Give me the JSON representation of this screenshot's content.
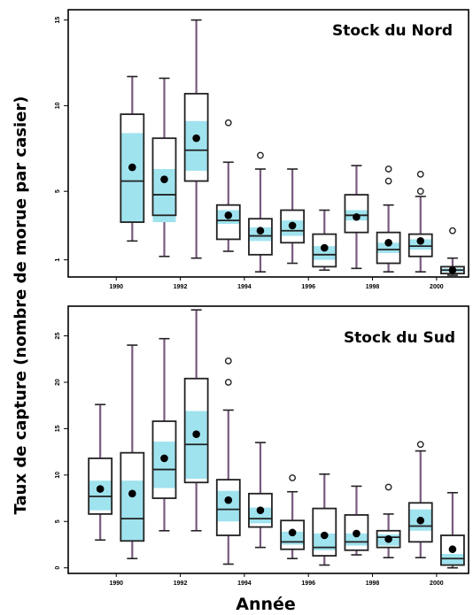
{
  "figure": {
    "ylabel": "Taux de capture (nombre de morue par casier)",
    "xlabel": "Année"
  },
  "chart_data": [
    {
      "type": "box",
      "title": "Stock du Nord",
      "ylim": [
        0,
        15.6
      ],
      "yticks": [
        1,
        5,
        10,
        15
      ],
      "ytick_labels": [
        "1",
        "5",
        "10",
        "15"
      ],
      "xlim": [
        1988.5,
        2001
      ],
      "xticks": [
        1990,
        1992,
        1994,
        1996,
        1998,
        2000
      ],
      "xtick_labels": [
        "1990",
        "1992",
        "1994",
        "1996",
        "1998",
        "2000"
      ],
      "colors": {
        "whisker": "#7a5a80",
        "box": "#222222",
        "ci": "#9fe3ee",
        "mean": "#000000"
      },
      "boxes": [
        {
          "x": 1990.5,
          "whislo": 2.1,
          "q1": 3.2,
          "med": 5.6,
          "q3": 9.5,
          "whishi": 11.7,
          "mean": 6.4,
          "ci": [
            3.2,
            8.4
          ],
          "fliers": []
        },
        {
          "x": 1991.5,
          "whislo": 1.2,
          "q1": 3.6,
          "med": 4.8,
          "q3": 8.1,
          "whishi": 11.6,
          "mean": 5.7,
          "ci": [
            3.2,
            6.3
          ],
          "fliers": []
        },
        {
          "x": 1992.5,
          "whislo": 1.1,
          "q1": 5.6,
          "med": 7.4,
          "q3": 10.7,
          "whishi": 15.0,
          "mean": 8.1,
          "ci": [
            6.2,
            9.1
          ],
          "fliers": []
        },
        {
          "x": 1993.5,
          "whislo": 1.5,
          "q1": 2.2,
          "med": 3.3,
          "q3": 4.2,
          "whishi": 6.7,
          "mean": 3.6,
          "ci": [
            3.1,
            3.9
          ],
          "fliers": [
            9.0
          ]
        },
        {
          "x": 1994.5,
          "whislo": 0.3,
          "q1": 1.3,
          "med": 2.4,
          "q3": 3.4,
          "whishi": 6.3,
          "mean": 2.7,
          "ci": [
            2.1,
            2.9
          ],
          "fliers": [
            7.1
          ]
        },
        {
          "x": 1995.5,
          "whislo": 0.8,
          "q1": 2.0,
          "med": 2.7,
          "q3": 3.9,
          "whishi": 6.3,
          "mean": 3.0,
          "ci": [
            2.4,
            3.3
          ],
          "fliers": []
        },
        {
          "x": 1996.5,
          "whislo": 0.4,
          "q1": 0.6,
          "med": 1.3,
          "q3": 2.5,
          "whishi": 3.9,
          "mean": 1.7,
          "ci": [
            1.0,
            1.8
          ],
          "fliers": []
        },
        {
          "x": 1997.5,
          "whislo": 0.5,
          "q1": 2.6,
          "med": 3.6,
          "q3": 4.8,
          "whishi": 6.5,
          "mean": 3.5,
          "ci": [
            3.3,
            3.9
          ],
          "fliers": []
        },
        {
          "x": 1998.5,
          "whislo": 0.3,
          "q1": 0.8,
          "med": 1.6,
          "q3": 2.6,
          "whishi": 4.2,
          "mean": 2.0,
          "ci": [
            1.4,
            2.0
          ],
          "fliers": [
            5.6,
            6.3
          ]
        },
        {
          "x": 1999.5,
          "whislo": 0.3,
          "q1": 1.2,
          "med": 1.8,
          "q3": 2.5,
          "whishi": 4.7,
          "mean": 2.1,
          "ci": [
            1.6,
            2.2
          ],
          "fliers": [
            5.0,
            6.0
          ]
        },
        {
          "x": 2000.5,
          "whislo": 0.1,
          "q1": 0.2,
          "med": 0.4,
          "q3": 0.6,
          "whishi": 1.1,
          "mean": 0.4,
          "ci": [
            0.3,
            0.5
          ],
          "fliers": [
            2.7
          ]
        }
      ]
    },
    {
      "type": "box",
      "title": "Stock du Sud",
      "ylim": [
        -0.6,
        28.2
      ],
      "yticks": [
        0,
        5,
        10,
        15,
        20,
        25
      ],
      "ytick_labels": [
        "0",
        "5",
        "10",
        "15",
        "20",
        "25"
      ],
      "xlim": [
        1988.5,
        2001
      ],
      "xticks": [
        1990,
        1992,
        1994,
        1996,
        1998,
        2000
      ],
      "xtick_labels": [
        "1990",
        "1992",
        "1994",
        "1996",
        "1998",
        "2000"
      ],
      "colors": {
        "whisker": "#7a5a80",
        "box": "#222222",
        "ci": "#9fe3ee",
        "mean": "#000000"
      },
      "boxes": [
        {
          "x": 1989.5,
          "whislo": 3.0,
          "q1": 5.8,
          "med": 7.7,
          "q3": 11.8,
          "whishi": 17.6,
          "mean": 8.5,
          "ci": [
            6.2,
            9.4
          ],
          "fliers": []
        },
        {
          "x": 1990.5,
          "whislo": 1.0,
          "q1": 2.9,
          "med": 5.3,
          "q3": 12.4,
          "whishi": 24.0,
          "mean": 8.0,
          "ci": [
            2.9,
            9.4
          ],
          "fliers": []
        },
        {
          "x": 1991.5,
          "whislo": 4.0,
          "q1": 7.5,
          "med": 10.6,
          "q3": 15.8,
          "whishi": 24.7,
          "mean": 11.8,
          "ci": [
            8.6,
            13.6
          ],
          "fliers": []
        },
        {
          "x": 1992.5,
          "whislo": 4.0,
          "q1": 9.2,
          "med": 13.3,
          "q3": 20.4,
          "whishi": 27.8,
          "mean": 14.4,
          "ci": [
            9.6,
            16.9
          ],
          "fliers": []
        },
        {
          "x": 1993.5,
          "whislo": 0.4,
          "q1": 3.5,
          "med": 6.3,
          "q3": 9.5,
          "whishi": 17.0,
          "mean": 7.3,
          "ci": [
            5.0,
            8.3
          ],
          "fliers": [
            20.0,
            22.3
          ]
        },
        {
          "x": 1994.5,
          "whislo": 2.2,
          "q1": 4.4,
          "med": 5.3,
          "q3": 8.0,
          "whishi": 13.5,
          "mean": 6.2,
          "ci": [
            4.8,
            6.5
          ],
          "fliers": []
        },
        {
          "x": 1995.5,
          "whislo": 1.0,
          "q1": 2.0,
          "med": 2.8,
          "q3": 5.1,
          "whishi": 8.2,
          "mean": 3.8,
          "ci": [
            2.5,
            3.9
          ],
          "fliers": [
            9.7
          ]
        },
        {
          "x": 1996.5,
          "whislo": 0.3,
          "q1": 1.3,
          "med": 2.2,
          "q3": 6.4,
          "whishi": 10.1,
          "mean": 3.5,
          "ci": [
            1.9,
            3.7
          ],
          "fliers": []
        },
        {
          "x": 1997.5,
          "whislo": 1.4,
          "q1": 1.9,
          "med": 2.8,
          "q3": 5.7,
          "whishi": 8.8,
          "mean": 3.7,
          "ci": [
            2.4,
            3.7
          ],
          "fliers": []
        },
        {
          "x": 1998.5,
          "whislo": 1.1,
          "q1": 2.2,
          "med": 3.3,
          "q3": 4.0,
          "whishi": 5.8,
          "mean": 3.1,
          "ci": [
            2.4,
            3.6
          ],
          "fliers": [
            8.7
          ]
        },
        {
          "x": 1999.5,
          "whislo": 1.1,
          "q1": 2.8,
          "med": 4.5,
          "q3": 7.0,
          "whishi": 12.6,
          "mean": 5.1,
          "ci": [
            4.0,
            6.3
          ],
          "fliers": [
            13.3
          ]
        },
        {
          "x": 2000.5,
          "whislo": 0.0,
          "q1": 0.3,
          "med": 1.0,
          "q3": 3.5,
          "whishi": 8.1,
          "mean": 2.0,
          "ci": [
            0.4,
            1.5
          ],
          "fliers": []
        }
      ]
    }
  ]
}
